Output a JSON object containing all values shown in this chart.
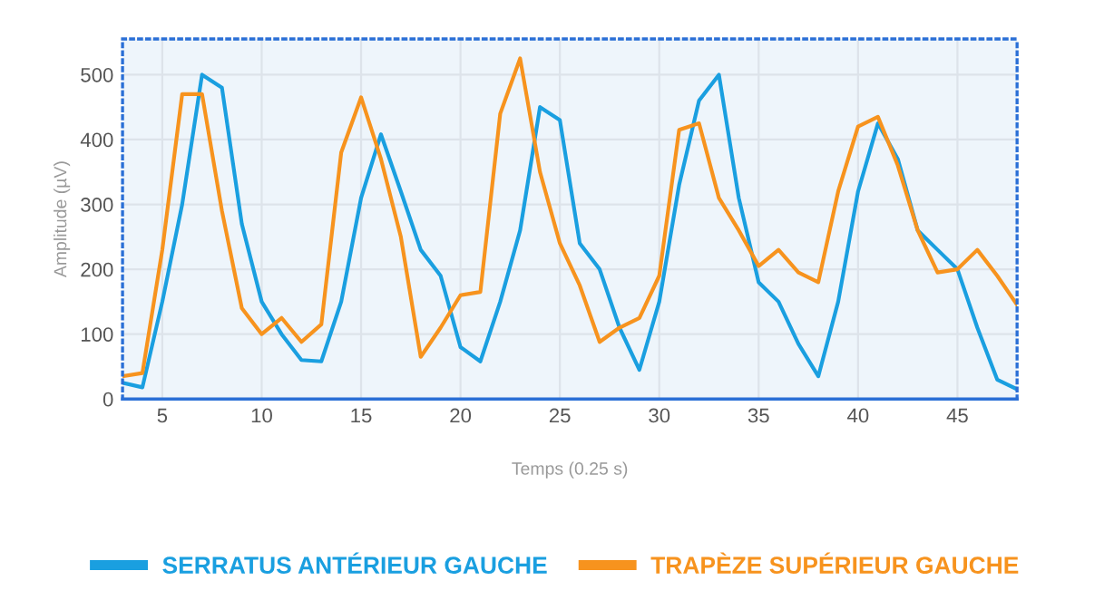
{
  "chart_data": {
    "type": "line",
    "xlabel": "Temps (0.25 s)",
    "ylabel": "Amplitude (µV)",
    "x": [
      3,
      4,
      5,
      6,
      7,
      8,
      9,
      10,
      11,
      12,
      13,
      14,
      15,
      16,
      17,
      18,
      19,
      20,
      21,
      22,
      23,
      24,
      25,
      26,
      27,
      28,
      29,
      30,
      31,
      32,
      33,
      34,
      35,
      36,
      37,
      38,
      39,
      40,
      41,
      42,
      43,
      44,
      45,
      46,
      47,
      48
    ],
    "series": [
      {
        "name": "SERRATUS ANTÉRIEUR GAUCHE",
        "color": "#1a9fe0",
        "values": [
          25,
          18,
          150,
          300,
          500,
          480,
          270,
          150,
          100,
          60,
          58,
          150,
          310,
          408,
          320,
          230,
          190,
          80,
          58,
          150,
          260,
          450,
          430,
          240,
          200,
          110,
          45,
          150,
          330,
          460,
          500,
          310,
          180,
          150,
          85,
          35,
          150,
          320,
          425,
          370,
          260,
          230,
          200,
          110,
          30,
          15
        ]
      },
      {
        "name": "TRAPÈZE SUPÉRIEUR GAUCHE",
        "color": "#f7931e",
        "values": [
          35,
          40,
          230,
          470,
          470,
          290,
          140,
          100,
          125,
          88,
          115,
          380,
          465,
          370,
          250,
          65,
          110,
          160,
          165,
          440,
          525,
          350,
          240,
          175,
          88,
          110,
          125,
          190,
          415,
          425,
          310,
          260,
          205,
          230,
          195,
          180,
          320,
          420,
          435,
          360,
          260,
          195,
          200,
          230,
          190,
          145
        ]
      }
    ],
    "xlim": [
      3,
      48
    ],
    "ylim": [
      0,
      555
    ],
    "xticks": [
      5,
      10,
      15,
      20,
      25,
      30,
      35,
      40,
      45
    ],
    "yticks": [
      0,
      100,
      200,
      300,
      400,
      500
    ],
    "grid": true,
    "legend": "bottom",
    "marker": "none",
    "line_style": "solid"
  }
}
